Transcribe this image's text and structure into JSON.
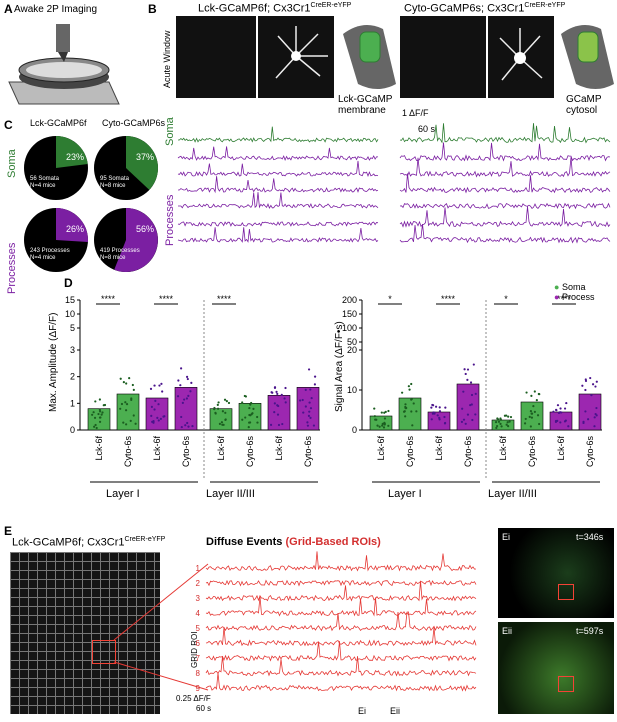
{
  "panels": {
    "A": {
      "letter": "A",
      "title": "Awake 2P Imaging"
    },
    "B": {
      "letter": "B",
      "left_title": "Lck-GCaMP6f; Cx3Cr1",
      "left_sup": "CreER-eYFP",
      "right_title": "Cyto-GCaMP6s; Cx3Cr1",
      "right_sup": "CreER-eYFP",
      "side_label": "Acute Window",
      "left_cartoon": "Lck-GCaMP\nmembrane",
      "right_cartoon": "GCaMP\ncytosol",
      "scale_y": "1",
      "scale_y_unit": "ΔF/F",
      "scale_x": "60 s",
      "soma_label": "Soma",
      "process_label": "Processes"
    },
    "C": {
      "letter": "C",
      "col1": "Lck-GCaMP6f",
      "col2": "Cyto-GCaMP6s",
      "row1": "Soma",
      "row2": "Processes",
      "pies": [
        {
          "pct": 23,
          "label": "23%",
          "note1": "56 Somata",
          "note2": "N=4 mice"
        },
        {
          "pct": 37,
          "label": "37%",
          "note1": "95 Somata",
          "note2": "N=8 mice"
        },
        {
          "pct": 26,
          "label": "26%",
          "note1": "243 Processes",
          "note2": "N=4 mice"
        },
        {
          "pct": 56,
          "label": "56%",
          "note1": "419 Processes",
          "note2": "N=8 mice"
        }
      ]
    },
    "D": {
      "letter": "D",
      "legend": [
        {
          "name": "Soma",
          "color": "#4caf50"
        },
        {
          "name": "Process",
          "color": "#9c27b0"
        }
      ],
      "left_ylabel": "Max. Amplitude (ΔF/F)",
      "right_ylabel": "Signal Area (ΔF/F•s)",
      "left_ticks_top": [
        "15",
        "10",
        "5"
      ],
      "left_ticks_bottom": [
        "3",
        "2",
        "1",
        "0"
      ],
      "right_ticks_top": [
        "200",
        "150",
        "100",
        "50"
      ],
      "right_ticks_bottom": [
        "20",
        "10",
        "0"
      ],
      "xcats": [
        "Lck-6f",
        "Cyto-6s",
        "Lck-6f",
        "Cyto-6s",
        "Lck-6f",
        "Cyto-6s",
        "Lck-6f",
        "Cyto-6s"
      ],
      "group1": "Layer I",
      "group2": "Layer II/III",
      "left_sig": [
        "****",
        "****",
        "****"
      ],
      "right_sig": [
        "*",
        "****",
        "*",
        "****"
      ]
    },
    "E": {
      "letter": "E",
      "title": "Lck-GCaMP6f; Cx3Cr1",
      "title_sup": "CreER-eYFP",
      "diffuse": "Diffuse Events",
      "grid": "(Grid-Based ROIs)",
      "roi_axis": "GRID ROI",
      "rois": [
        "1",
        "2",
        "3",
        "4",
        "5",
        "6",
        "7",
        "8",
        "9"
      ],
      "scale_y": "0.25",
      "scale_unit": "ΔF/F",
      "scale_x": "60 s",
      "mark1": "Ei",
      "mark2": "Eii",
      "inset1": "Ei",
      "inset1_t": "t=346s",
      "inset2": "Eii",
      "inset2_t": "t=597s"
    }
  },
  "chart_data": [
    {
      "type": "bar",
      "ylabel": "Max. Amplitude (ΔF/F)",
      "categories": [
        "Lck-6f",
        "Cyto-6s",
        "Lck-6f",
        "Cyto-6s",
        "Lck-6f",
        "Cyto-6s",
        "Lck-6f",
        "Cyto-6s"
      ],
      "series": [
        {
          "name": "Soma",
          "values": [
            0.8,
            1.35,
            null,
            null,
            0.8,
            1.0,
            null,
            null
          ]
        },
        {
          "name": "Process",
          "values": [
            null,
            null,
            1.2,
            1.6,
            null,
            null,
            1.3,
            1.6
          ]
        }
      ]
    },
    {
      "type": "bar",
      "ylabel": "Signal Area (ΔF/F•s)",
      "categories": [
        "Lck-6f",
        "Cyto-6s",
        "Lck-6f",
        "Cyto-6s",
        "Lck-6f",
        "Cyto-6s",
        "Lck-6f",
        "Cyto-6s"
      ],
      "series": [
        {
          "name": "Soma",
          "values": [
            3.5,
            8,
            null,
            null,
            2.5,
            7,
            null,
            null
          ]
        },
        {
          "name": "Process",
          "values": [
            null,
            null,
            4.5,
            11.5,
            null,
            null,
            4.5,
            9
          ]
        }
      ]
    }
  ]
}
